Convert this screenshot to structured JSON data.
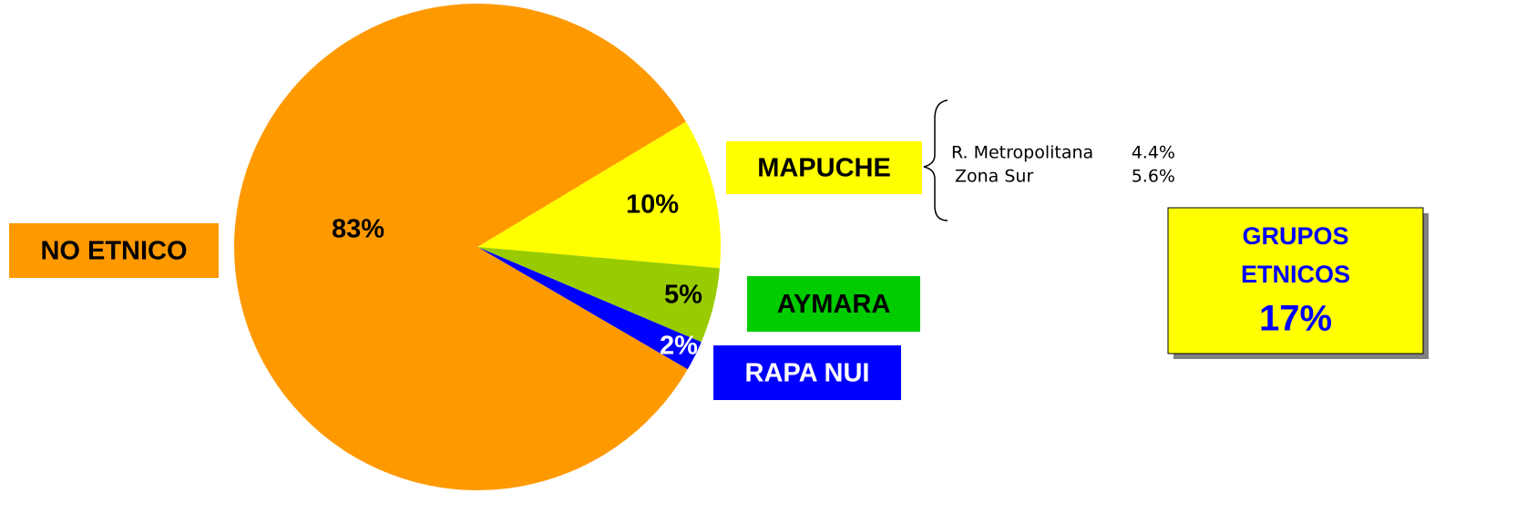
{
  "chart_data": {
    "type": "pie",
    "categories": [
      "MAPUCHE",
      "AYMARA",
      "RAPA NUI",
      "NO ETNICO"
    ],
    "values": [
      10,
      5,
      2,
      83
    ],
    "value_labels": [
      "10%",
      "5%",
      "2%",
      "83%"
    ],
    "colors": [
      "#ffff00",
      "#99cc00",
      "#0000ff",
      "#ff9900"
    ],
    "label_colors": [
      "#ffff00",
      "#00cc00",
      "#0000ff",
      "#ff9900"
    ],
    "label_text_colors": [
      "#000000",
      "#000000",
      "#ffffff",
      "#000000"
    ],
    "value_label_colors": [
      "#000000",
      "#000000",
      "#ffffff",
      "#000000"
    ],
    "annotation": {
      "rows": [
        {
          "label": "R. Metropolitana",
          "value": "4.4%"
        },
        {
          "label": "Zona Sur",
          "value": "5.6%"
        }
      ]
    },
    "summary": {
      "lines": [
        "GRUPOS",
        "ETNICOS"
      ],
      "value": "17%"
    }
  }
}
